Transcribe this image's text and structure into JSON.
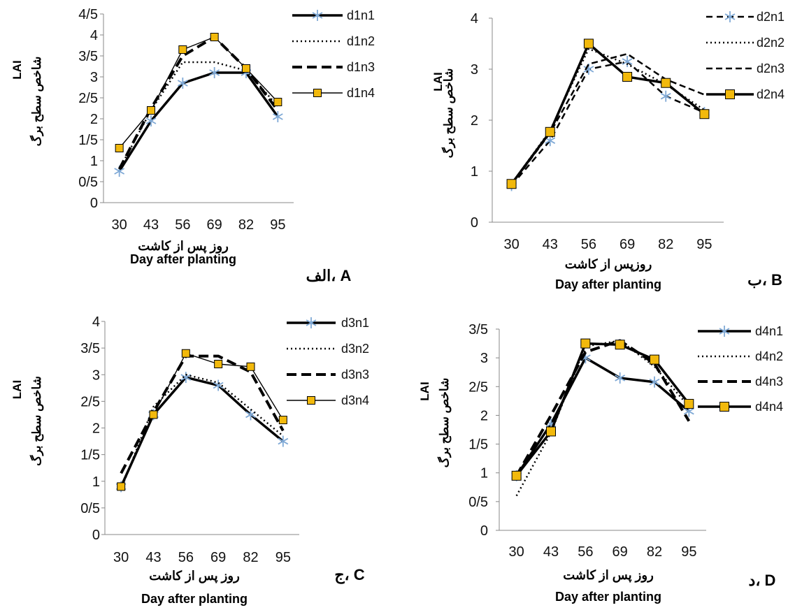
{
  "chart_data": [
    {
      "type": "line",
      "panel_label": "الف، A",
      "ylabel_en": "LAI",
      "ylabel_fa": "شاخص سطح برگ",
      "xlabel_fa": "روز پس از کاشت",
      "xlabel_en": "Day after planting",
      "categories": [
        "30",
        "43",
        "56",
        "69",
        "82",
        "95"
      ],
      "yticks": [
        "0",
        "0/5",
        "1",
        "1/5",
        "2",
        "2/5",
        "3",
        "3/5",
        "4",
        "4/5"
      ],
      "ylim": [
        0,
        4.5
      ],
      "legend": "right",
      "series": [
        {
          "name": "d1n1",
          "values": [
            0.75,
            1.95,
            2.85,
            3.1,
            3.1,
            2.05
          ]
        },
        {
          "name": "d1n2",
          "values": [
            0.8,
            2.2,
            3.35,
            3.35,
            3.15,
            2.3
          ]
        },
        {
          "name": "d1n3",
          "values": [
            0.8,
            2.25,
            3.5,
            3.95,
            3.2,
            2.2
          ]
        },
        {
          "name": "d1n4",
          "values": [
            1.3,
            2.2,
            3.65,
            3.95,
            3.2,
            2.4
          ]
        }
      ]
    },
    {
      "type": "line",
      "panel_label": "ب، B",
      "ylabel_en": "LAI",
      "ylabel_fa": "شاخص سطح برگ",
      "xlabel_fa": "روزپس از کاشت",
      "xlabel_en": "Day after planting",
      "categories": [
        "30",
        "43",
        "56",
        "69",
        "82",
        "95"
      ],
      "yticks": [
        "0",
        "1",
        "2",
        "3",
        "4"
      ],
      "ylim": [
        0,
        4
      ],
      "legend": "right",
      "series": [
        {
          "name": "d2n1",
          "values": [
            0.72,
            1.6,
            3.0,
            3.15,
            2.47,
            2.15
          ]
        },
        {
          "name": "d2n2",
          "values": [
            0.75,
            1.8,
            3.4,
            3.1,
            2.7,
            2.2
          ]
        },
        {
          "name": "d2n3",
          "values": [
            0.73,
            1.75,
            3.1,
            3.3,
            2.8,
            2.5
          ]
        },
        {
          "name": "d2n4",
          "values": [
            0.75,
            1.77,
            3.5,
            2.85,
            2.73,
            2.12
          ]
        }
      ]
    },
    {
      "type": "line",
      "panel_label": "ج، C",
      "ylabel_en": "LAI",
      "ylabel_fa": "شاخص سطح برگ",
      "xlabel_fa": "روز پس از کاشت",
      "xlabel_en": "Day after planting",
      "categories": [
        "30",
        "43",
        "56",
        "69",
        "82",
        "95"
      ],
      "yticks": [
        "0",
        "0/5",
        "1",
        "1/5",
        "2",
        "2/5",
        "3",
        "3/5",
        "4"
      ],
      "ylim": [
        0,
        4
      ],
      "legend": "right",
      "series": [
        {
          "name": "d3n1",
          "values": [
            0.9,
            2.25,
            2.95,
            2.8,
            2.25,
            1.75
          ]
        },
        {
          "name": "d3n2",
          "values": [
            0.85,
            2.4,
            3.0,
            2.85,
            2.35,
            1.85
          ]
        },
        {
          "name": "d3n3",
          "values": [
            1.15,
            2.3,
            3.35,
            3.35,
            3.05,
            1.95
          ]
        },
        {
          "name": "d3n4",
          "values": [
            0.9,
            2.25,
            3.4,
            3.2,
            3.15,
            2.15
          ]
        }
      ]
    },
    {
      "type": "line",
      "panel_label": "د، D",
      "ylabel_en": "LAI",
      "ylabel_fa": "شاخص سطح برگ",
      "xlabel_fa": "روز پس از کاشت",
      "xlabel_en": "Day after planting",
      "categories": [
        "30",
        "43",
        "56",
        "69",
        "82",
        "95"
      ],
      "yticks": [
        "0",
        "0/5",
        "1",
        "1/5",
        "2",
        "2/5",
        "3",
        "3/5"
      ],
      "ylim": [
        0,
        3.5
      ],
      "legend": "right",
      "series": [
        {
          "name": "d4n1",
          "values": [
            0.95,
            1.85,
            3.0,
            2.65,
            2.58,
            2.07
          ]
        },
        {
          "name": "d4n2",
          "values": [
            0.6,
            1.7,
            3.2,
            3.3,
            2.85,
            2.15
          ]
        },
        {
          "name": "d4n3",
          "values": [
            0.95,
            2.0,
            3.1,
            3.3,
            2.9,
            1.9
          ]
        },
        {
          "name": "d4n4",
          "values": [
            0.95,
            1.72,
            3.25,
            3.23,
            2.97,
            2.2
          ]
        }
      ]
    }
  ]
}
